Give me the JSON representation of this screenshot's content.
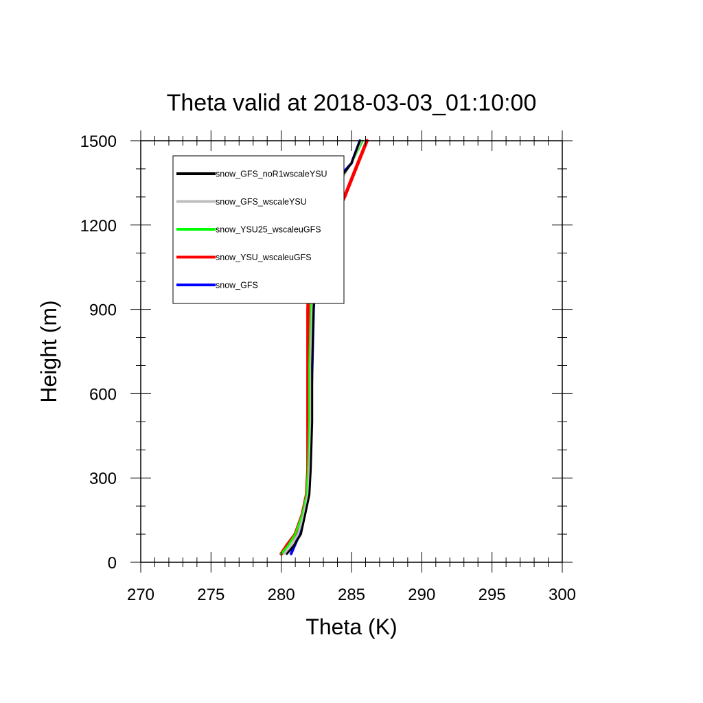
{
  "chart_data": {
    "type": "line",
    "title": "Theta valid at 2018-03-03_01:10:00",
    "xlabel": "Theta (K)",
    "ylabel": "Height (m)",
    "xlim": [
      270,
      300
    ],
    "ylim": [
      0,
      1500
    ],
    "xticks": [
      "270",
      "275",
      "280",
      "285",
      "290",
      "295",
      "300"
    ],
    "yticks": [
      "0",
      "300",
      "600",
      "900",
      "1200",
      "1500"
    ],
    "x_minor_step": 1,
    "y_minor_step": 100,
    "legend_position": "top-left",
    "series": [
      {
        "name": "snow_GFS",
        "color": "#0000ff",
        "width": 4,
        "points": [
          [
            280.7,
            30
          ],
          [
            281.3,
            100
          ],
          [
            281.6,
            160
          ],
          [
            281.9,
            240
          ],
          [
            282.0,
            330
          ],
          [
            282.1,
            500
          ],
          [
            282.2,
            700
          ],
          [
            282.3,
            900
          ],
          [
            282.4,
            1000
          ],
          [
            282.6,
            1100
          ],
          [
            282.9,
            1200
          ],
          [
            283.4,
            1300
          ],
          [
            284.3,
            1380
          ],
          [
            285.0,
            1420
          ],
          [
            285.6,
            1500
          ]
        ]
      },
      {
        "name": "snow_YSU_wscaleuGFS",
        "color": "#ff0000",
        "width": 5,
        "points": [
          [
            280.0,
            30
          ],
          [
            280.4,
            60
          ],
          [
            281.0,
            100
          ],
          [
            281.5,
            170
          ],
          [
            281.8,
            240
          ],
          [
            281.9,
            330
          ],
          [
            281.9,
            500
          ],
          [
            281.9,
            700
          ],
          [
            281.9,
            900
          ],
          [
            281.95,
            990
          ],
          [
            282.5,
            1100
          ],
          [
            283.5,
            1200
          ],
          [
            284.5,
            1300
          ],
          [
            285.3,
            1400
          ],
          [
            286.1,
            1500
          ]
        ]
      },
      {
        "name": "snow_YSU25_wscaleuGFS",
        "color": "#00ff00",
        "width": 3,
        "points": [
          [
            280.0,
            30
          ],
          [
            280.5,
            60
          ],
          [
            281.0,
            100
          ],
          [
            281.5,
            170
          ],
          [
            281.8,
            240
          ],
          [
            281.9,
            330
          ],
          [
            282.0,
            500
          ],
          [
            282.0,
            700
          ],
          [
            282.1,
            900
          ],
          [
            282.2,
            1000
          ],
          [
            282.4,
            1100
          ],
          [
            282.9,
            1200
          ],
          [
            283.5,
            1300
          ],
          [
            284.5,
            1380
          ],
          [
            285.2,
            1440
          ],
          [
            285.8,
            1500
          ]
        ]
      },
      {
        "name": "snow_GFS_wscaleYSU",
        "color": "#bebebe",
        "width": 3,
        "points": [
          [
            280.2,
            30
          ],
          [
            280.7,
            60
          ],
          [
            281.2,
            100
          ],
          [
            281.6,
            170
          ],
          [
            281.9,
            240
          ],
          [
            282.0,
            330
          ],
          [
            282.1,
            500
          ],
          [
            282.1,
            700
          ],
          [
            282.2,
            900
          ],
          [
            282.4,
            1000
          ],
          [
            282.7,
            1100
          ],
          [
            283.0,
            1200
          ],
          [
            283.6,
            1300
          ],
          [
            284.5,
            1380
          ],
          [
            285.1,
            1430
          ],
          [
            285.7,
            1500
          ]
        ]
      },
      {
        "name": "snow_GFS_noR1wscaleYSU",
        "color": "#000000",
        "width": 3,
        "points": [
          [
            280.4,
            30
          ],
          [
            280.9,
            60
          ],
          [
            281.4,
            100
          ],
          [
            281.7,
            170
          ],
          [
            282.0,
            240
          ],
          [
            282.1,
            330
          ],
          [
            282.2,
            500
          ],
          [
            282.2,
            700
          ],
          [
            282.3,
            900
          ],
          [
            282.4,
            1000
          ],
          [
            282.6,
            1100
          ],
          [
            283.0,
            1200
          ],
          [
            283.4,
            1300
          ],
          [
            284.4,
            1380
          ],
          [
            285.0,
            1420
          ],
          [
            285.6,
            1500
          ]
        ]
      }
    ],
    "legend": [
      {
        "name": "snow_GFS_noR1wscaleYSU",
        "color": "#000000"
      },
      {
        "name": "snow_GFS_wscaleYSU",
        "color": "#bebebe"
      },
      {
        "name": "snow_YSU25_wscaleuGFS",
        "color": "#00ff00"
      },
      {
        "name": "snow_YSU_wscaleuGFS",
        "color": "#ff0000"
      },
      {
        "name": "snow_GFS",
        "color": "#0000ff"
      }
    ]
  }
}
